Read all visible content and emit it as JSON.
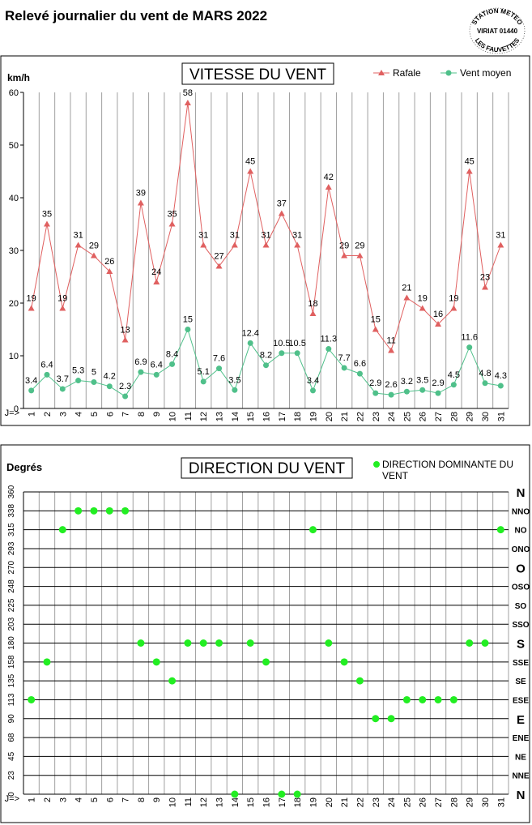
{
  "header": {
    "title": "Relevé journalier du vent de MARS 2022",
    "stamp_lines": [
      "STATION METEO",
      "VIRIAT 01440",
      "LES FAUVETTES"
    ]
  },
  "chart_data": [
    {
      "type": "line",
      "title": "VITESSE DU VENT",
      "ylabel": "km/h",
      "x_prefix": "J=>",
      "ylim": [
        0,
        60
      ],
      "yticks": [
        0,
        10,
        20,
        30,
        40,
        50,
        60
      ],
      "categories": [
        "1",
        "2",
        "3",
        "4",
        "5",
        "6",
        "7",
        "8",
        "9",
        "10",
        "11",
        "12",
        "13",
        "14",
        "15",
        "16",
        "17",
        "18",
        "19",
        "20",
        "21",
        "22",
        "23",
        "24",
        "25",
        "26",
        "27",
        "28",
        "29",
        "30",
        "31"
      ],
      "grid": "vertical",
      "legend_position": "top-right",
      "series": [
        {
          "name": "Rafale",
          "color": "#e06060",
          "marker": "triangle",
          "values": [
            19,
            35,
            19,
            31,
            29,
            26,
            13,
            39,
            24,
            35,
            58,
            31,
            27,
            31,
            45,
            31,
            37,
            31,
            18,
            42,
            29,
            29,
            15,
            11,
            21,
            19,
            16,
            19,
            45,
            23,
            31
          ],
          "labels": [
            "19",
            "35",
            "19",
            "31",
            "29",
            "26",
            "13",
            "39",
            "24",
            "35",
            "58",
            "31",
            "27",
            "31",
            "45",
            "31",
            "37",
            "31",
            "18",
            "42",
            "29",
            "29",
            "15",
            "11",
            "21",
            "19",
            "16",
            "19",
            "45",
            "23",
            "31"
          ]
        },
        {
          "name": "Vent moyen",
          "color": "#4fc08a",
          "marker": "circle",
          "values": [
            3.4,
            6.4,
            3.7,
            5.3,
            5.0,
            4.2,
            2.3,
            6.9,
            6.4,
            8.4,
            15,
            5.1,
            7.6,
            3.5,
            12.4,
            8.2,
            10.5,
            10.5,
            3.4,
            11.3,
            7.7,
            6.6,
            2.9,
            2.6,
            3.2,
            3.5,
            2.9,
            4.5,
            11.6,
            4.8,
            4.3
          ],
          "labels": [
            "3.4",
            "6.4",
            "3.7",
            "5.3",
            "5",
            "4.2",
            "2.3",
            "6.9",
            "6.4",
            "8.4",
            "15",
            "5.1",
            "7.6",
            "3.5",
            "12.4",
            "8.2",
            "10.5",
            "10.5",
            "3.4",
            "11.3",
            "7.7",
            "6.6",
            "2.9",
            "2.6",
            "3.2",
            "3.5",
            "2.9",
            "4.5",
            "11.6",
            "4.8",
            "4.3"
          ]
        }
      ]
    },
    {
      "type": "scatter",
      "title": "DIRECTION DU VENT",
      "ylabel": "Degrés",
      "x_prefix": "J=>",
      "ylim": [
        0,
        360
      ],
      "ytick_values": [
        0,
        22.5,
        45,
        67.5,
        90,
        112.5,
        135,
        157.5,
        180,
        202.5,
        225,
        247.5,
        270,
        292.5,
        315,
        337.5,
        360
      ],
      "ytick_labels": [
        "0",
        "23",
        "45",
        "68",
        "90",
        "113",
        "135",
        "158",
        "180",
        "203",
        "225",
        "248",
        "270",
        "293",
        "315",
        "338",
        "360"
      ],
      "right_labels": [
        "N",
        "NNE",
        "NE",
        "ENE",
        "E",
        "ESE",
        "SE",
        "SSE",
        "S",
        "SSO",
        "SO",
        "OSO",
        "O",
        "ONO",
        "NO",
        "NNO",
        "N"
      ],
      "categories": [
        "1",
        "2",
        "3",
        "4",
        "5",
        "6",
        "7",
        "8",
        "9",
        "10",
        "11",
        "12",
        "13",
        "14",
        "15",
        "16",
        "17",
        "18",
        "19",
        "20",
        "21",
        "22",
        "23",
        "24",
        "25",
        "26",
        "27",
        "28",
        "29",
        "30",
        "31"
      ],
      "grid": "both",
      "legend_position": "top-right",
      "series": [
        {
          "name": "DIRECTION DOMINANTE DU VENT",
          "color": "#22ee22",
          "values": [
            112.5,
            157.5,
            315,
            337.5,
            337.5,
            337.5,
            337.5,
            180,
            157.5,
            135,
            180,
            180,
            180,
            0,
            180,
            157.5,
            0,
            0,
            315,
            180,
            157.5,
            135,
            90,
            90,
            112.5,
            112.5,
            112.5,
            112.5,
            180,
            180,
            315
          ]
        }
      ]
    }
  ]
}
